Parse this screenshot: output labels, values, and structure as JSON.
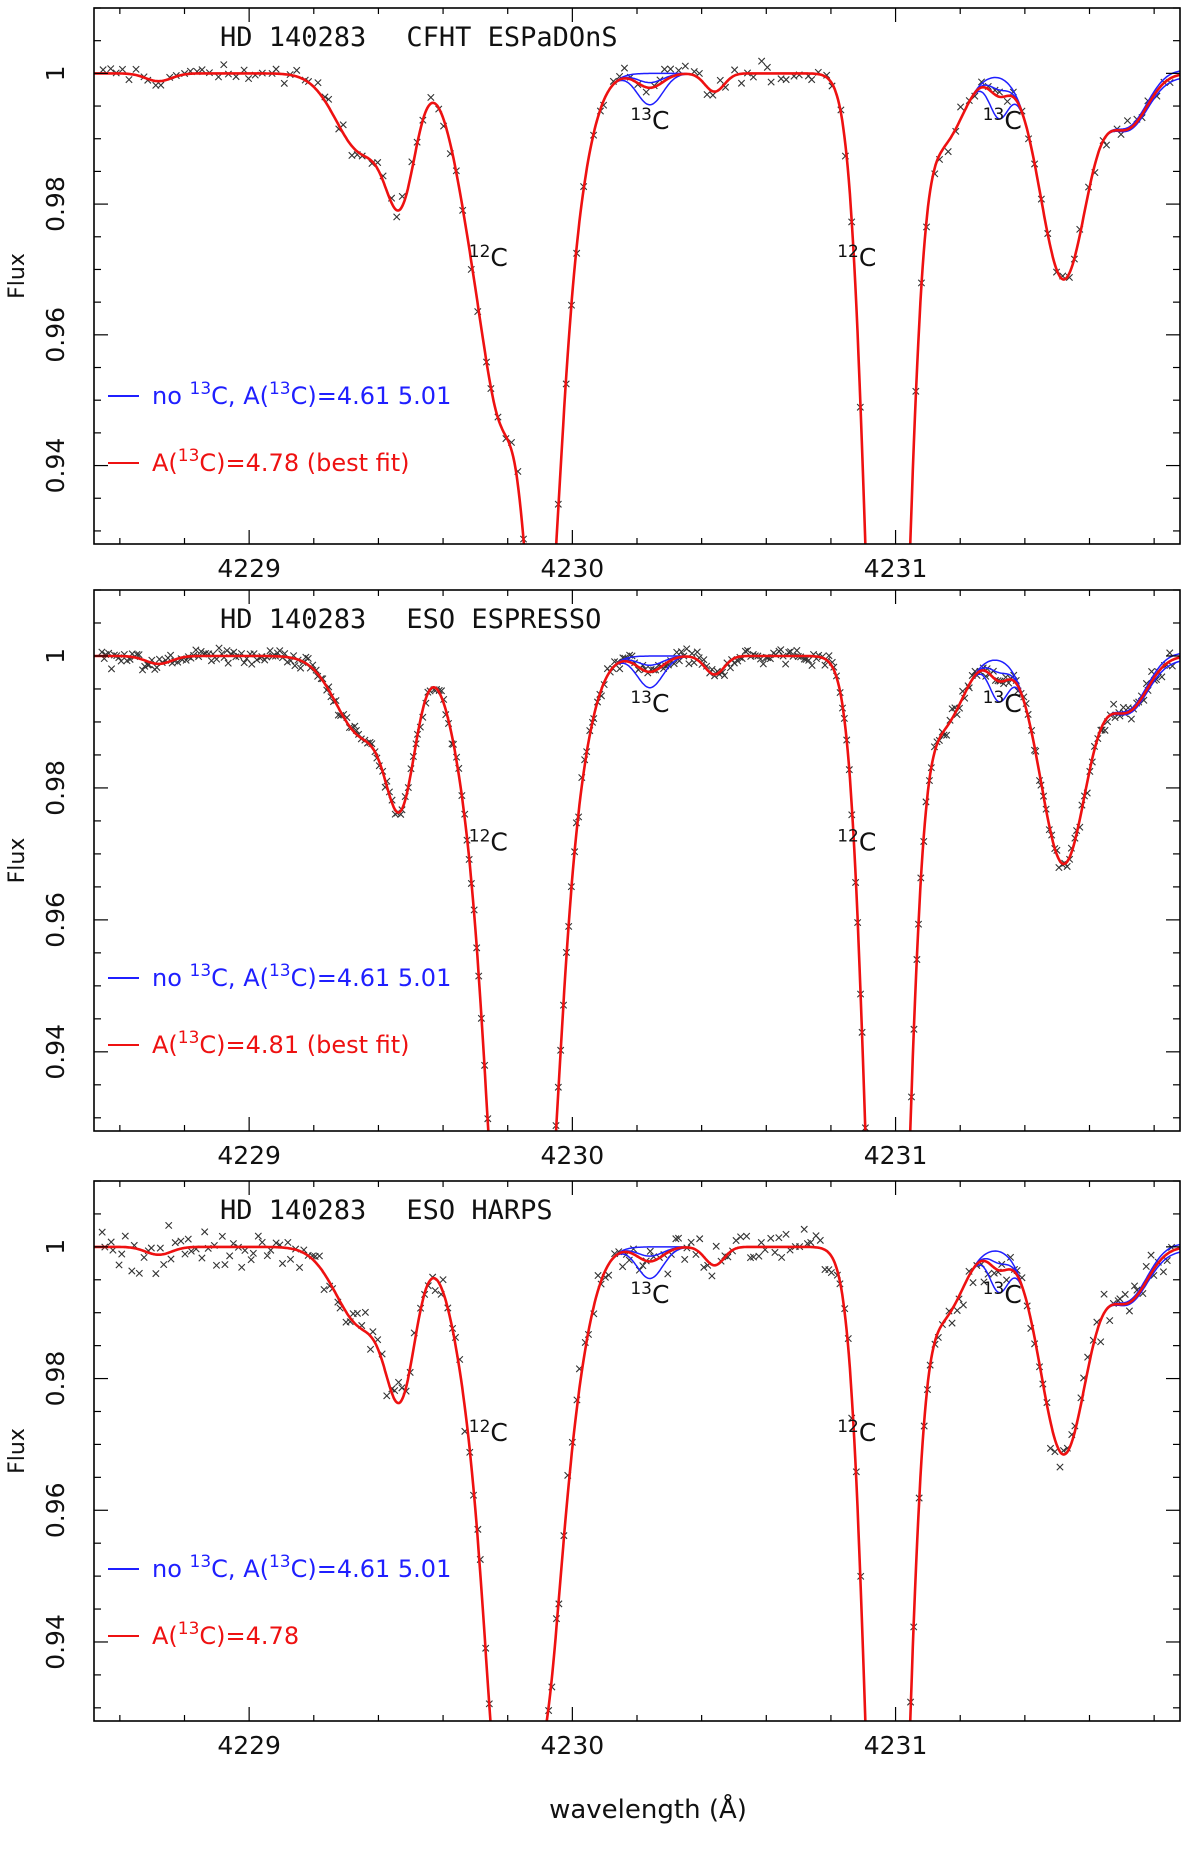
{
  "figure": {
    "shared_xlabel": "wavelength (Å)"
  },
  "chart_data": [
    {
      "type": "line",
      "title_star": "HD 140283",
      "title_instrument": "CFHT ESPaDOnS",
      "xlabel": "wavelength (Å)",
      "ylabel": "Flux",
      "xlim": [
        4228.52,
        4231.88
      ],
      "ylim": [
        0.928,
        1.01
      ],
      "x_ticks": [
        4229,
        4230,
        4231
      ],
      "y_ticks": [
        0.94,
        0.96,
        0.98,
        1
      ],
      "y_tick_labels": [
        "0.94",
        "0.96",
        "0.98",
        "1"
      ],
      "annotations": [
        {
          "text": "12C",
          "iso": "12",
          "el": "C",
          "x": 4229.74,
          "y": 0.9705
        },
        {
          "text": "12C",
          "iso": "12",
          "el": "C",
          "x": 4230.88,
          "y": 0.9705
        },
        {
          "text": "13C",
          "iso": "13",
          "el": "C",
          "x": 4230.24,
          "y": 0.9915
        },
        {
          "text": "13C",
          "iso": "13",
          "el": "C",
          "x": 4231.33,
          "y": 0.9915
        }
      ],
      "legend": [
        {
          "prefix": "no ",
          "sup": "13",
          "el": "C, A(",
          "sup2": "13",
          "rest": "C)=4.61  5.01",
          "color": "#1f1fff"
        },
        {
          "prefix": "A(",
          "sup": "13",
          "el": "C)=4.78 (best fit)",
          "color": "#ee1111"
        }
      ],
      "series": [
        {
          "name": "no 13C, A(13C)=4.61 5.01",
          "color": "#1f1fff",
          "depth_13c_variants": [
            0.0,
            0.0014,
            0.0048
          ]
        },
        {
          "name": "A(13C)=4.78 (best fit)",
          "color": "#ee1111",
          "depth_13c": 0.0022
        },
        {
          "name": "observed",
          "color": "#333333",
          "marker": "x",
          "n_points": 160,
          "noise": 0.0012
        }
      ],
      "model_depths": {
        "a": 0.0167,
        "b": 0.0302,
        "c": 0.0728,
        "d": 0.0635,
        "e": 0.0765,
        "f": 0.0777,
        "g": 0.0315
      }
    },
    {
      "type": "line",
      "title_star": "HD 140283",
      "title_instrument": "ESO ESPRESSO",
      "xlabel": "wavelength (Å)",
      "ylabel": "Flux",
      "xlim": [
        4228.52,
        4231.88
      ],
      "ylim": [
        0.928,
        1.01
      ],
      "x_ticks": [
        4229,
        4230,
        4231
      ],
      "y_ticks": [
        0.94,
        0.96,
        0.98,
        1
      ],
      "y_tick_labels": [
        "0.94",
        "0.96",
        "0.98",
        "1"
      ],
      "annotations": [
        {
          "text": "12C",
          "iso": "12",
          "el": "C",
          "x": 4229.74,
          "y": 0.9705
        },
        {
          "text": "12C",
          "iso": "12",
          "el": "C",
          "x": 4230.88,
          "y": 0.9705
        },
        {
          "text": "13C",
          "iso": "13",
          "el": "C",
          "x": 4230.24,
          "y": 0.9915
        },
        {
          "text": "13C",
          "iso": "13",
          "el": "C",
          "x": 4231.33,
          "y": 0.9915
        }
      ],
      "legend": [
        {
          "prefix": "no ",
          "sup": "13",
          "el": "C, A(",
          "sup2": "13",
          "rest": "C)=4.61  5.01",
          "color": "#1f1fff"
        },
        {
          "prefix": "A(",
          "sup": "13",
          "el": "C)=4.81 (best fit)",
          "color": "#ee1111"
        }
      ],
      "series": [
        {
          "name": "no 13C, A(13C)=4.61 5.01",
          "color": "#1f1fff",
          "depth_13c_variants": [
            0.0,
            0.0014,
            0.0048
          ]
        },
        {
          "name": "A(13C)=4.81 (best fit)",
          "color": "#ee1111",
          "depth_13c": 0.0024
        },
        {
          "name": "observed",
          "color": "#333333",
          "marker": "x",
          "n_points": 420,
          "noise": 0.0009
        }
      ],
      "model_depths": {
        "a": 0.0195,
        "b": 0.0733,
        "c": 0.0715,
        "d": 0.0733,
        "e": 0.0765,
        "f": 0.0777,
        "g": 0.0315
      }
    },
    {
      "type": "line",
      "title_star": "HD 140283",
      "title_instrument": "ESO HARPS",
      "xlabel": "wavelength (Å)",
      "ylabel": "Flux",
      "xlim": [
        4228.52,
        4231.88
      ],
      "ylim": [
        0.928,
        1.01
      ],
      "x_ticks": [
        4229,
        4230,
        4231
      ],
      "y_ticks": [
        0.94,
        0.96,
        0.98,
        1
      ],
      "y_tick_labels": [
        "0.94",
        "0.96",
        "0.98",
        "1"
      ],
      "annotations": [
        {
          "text": "12C",
          "iso": "12",
          "el": "C",
          "x": 4229.74,
          "y": 0.9705
        },
        {
          "text": "12C",
          "iso": "12",
          "el": "C",
          "x": 4230.88,
          "y": 0.9705
        },
        {
          "text": "13C",
          "iso": "13",
          "el": "C",
          "x": 4230.24,
          "y": 0.9915
        },
        {
          "text": "13C",
          "iso": "13",
          "el": "C",
          "x": 4231.33,
          "y": 0.9915
        }
      ],
      "legend": [
        {
          "prefix": "no ",
          "sup": "13",
          "el": "C, A(",
          "sup2": "13",
          "rest": "C)=4.61  5.01",
          "color": "#1f1fff"
        },
        {
          "prefix": "A(",
          "sup": "13",
          "el": "C)=4.78",
          "color": "#ee1111"
        }
      ],
      "series": [
        {
          "name": "no 13C, A(13C)=4.61 5.01",
          "color": "#1f1fff",
          "depth_13c_variants": [
            0.0,
            0.0014,
            0.0048
          ]
        },
        {
          "name": "A(13C)=4.78",
          "color": "#ee1111",
          "depth_13c": 0.0022
        },
        {
          "name": "observed",
          "color": "#333333",
          "marker": "x",
          "n_points": 260,
          "noise": 0.0022
        }
      ],
      "model_depths": {
        "a": 0.0195,
        "b": 0.066,
        "c": 0.0495,
        "d": 0.066,
        "e": 0.0765,
        "f": 0.0777,
        "g": 0.0315
      }
    }
  ]
}
